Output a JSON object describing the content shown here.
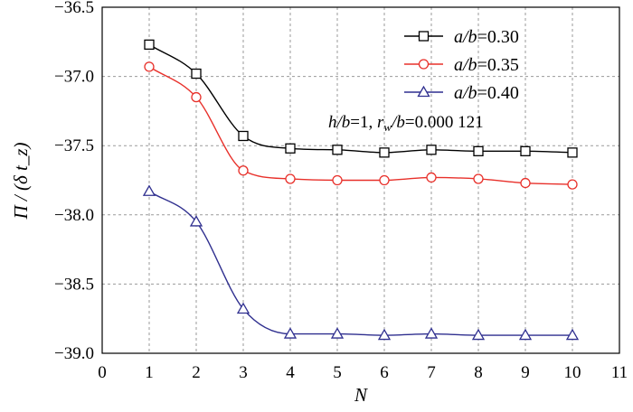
{
  "chart_data": {
    "type": "line",
    "x": [
      1,
      2,
      3,
      4,
      5,
      6,
      7,
      8,
      9,
      10
    ],
    "xlabel": "N",
    "ylabel": "Π / (δ t_z)",
    "xlim": [
      0,
      11
    ],
    "ylim": [
      -39.0,
      -36.5
    ],
    "xticks": [
      "0",
      "1",
      "2",
      "3",
      "4",
      "5",
      "6",
      "7",
      "8",
      "9",
      "10",
      "11"
    ],
    "yticks": [
      "−36.5",
      "−37.0",
      "−37.5",
      "−38.0",
      "−38.5",
      "−39.0"
    ],
    "grid": true,
    "legend_position": "top-right",
    "series": [
      {
        "name": "a/b=0.30",
        "label_var": "a/b",
        "label_eq": "=0.30",
        "color": "#000000",
        "marker": "square",
        "values": [
          -36.77,
          -36.98,
          -37.43,
          -37.52,
          -37.53,
          -37.55,
          -37.53,
          -37.54,
          -37.54,
          -37.55
        ]
      },
      {
        "name": "a/b=0.35",
        "label_var": "a/b",
        "label_eq": "=0.35",
        "color": "#e8302a",
        "marker": "circle",
        "values": [
          -36.93,
          -37.15,
          -37.68,
          -37.74,
          -37.75,
          -37.75,
          -37.73,
          -37.74,
          -37.77,
          -37.78
        ]
      },
      {
        "name": "a/b=0.40",
        "label_var": "a/b",
        "label_eq": "=0.40",
        "color": "#2f2f8f",
        "marker": "triangle",
        "values": [
          -37.83,
          -38.05,
          -38.68,
          -38.86,
          -38.86,
          -38.87,
          -38.86,
          -38.87,
          -38.87,
          -38.87
        ]
      }
    ],
    "annotation": {
      "part1_var": "h/b",
      "part1_eq": "=1, ",
      "part2_var": "r",
      "part2_sub": "w",
      "part2_rest": "/b",
      "part2_eq": "=0.000 121"
    }
  }
}
